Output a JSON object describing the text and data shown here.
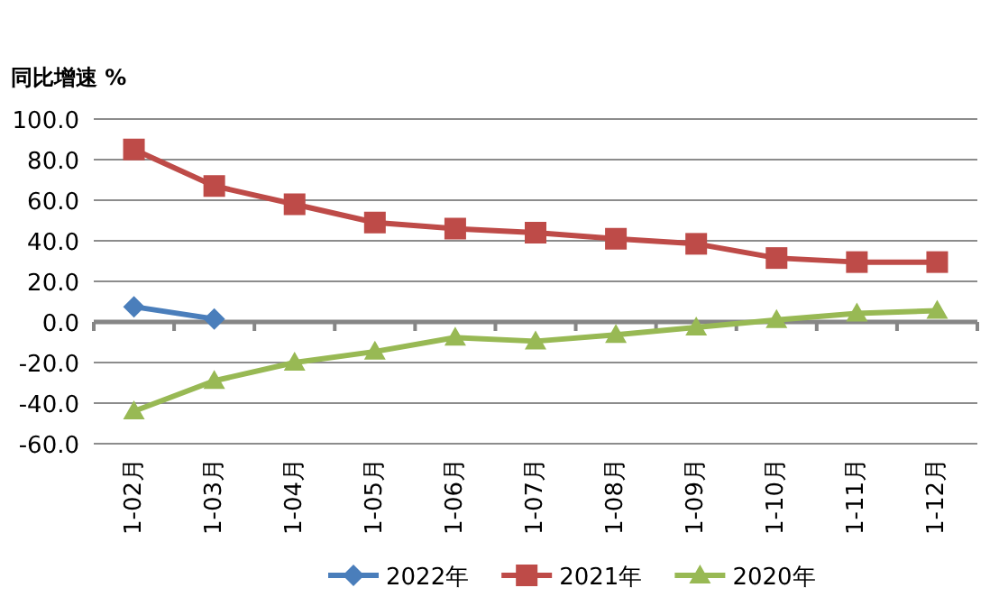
{
  "chart_data": {
    "type": "line",
    "ylabel": "同比增速 %",
    "categories": [
      "1-02月",
      "1-03月",
      "1-04月",
      "1-05月",
      "1-06月",
      "1-07月",
      "1-08月",
      "1-09月",
      "1-10月",
      "1-11月",
      "1-12月"
    ],
    "series": [
      {
        "name": "2022年",
        "color": "#4a7ebb",
        "marker": "diamond",
        "values": [
          7.5,
          1.5,
          null,
          null,
          null,
          null,
          null,
          null,
          null,
          null,
          null
        ]
      },
      {
        "name": "2021年",
        "color": "#be4b48",
        "marker": "square",
        "values": [
          85,
          67,
          58,
          49,
          46,
          44,
          41,
          38.5,
          31.5,
          29.5,
          29.5
        ]
      },
      {
        "name": "2020年",
        "color": "#98b954",
        "marker": "triangle",
        "values": [
          -44,
          -29,
          -20,
          -14.6,
          -7.7,
          -9.5,
          -6.3,
          -2.7,
          1,
          4.2,
          5.6
        ]
      }
    ],
    "ylim": [
      -60,
      100
    ],
    "yticks": [
      {
        "value": 100,
        "label": "100.0"
      },
      {
        "value": 80,
        "label": "80.0"
      },
      {
        "value": 60,
        "label": "60.0"
      },
      {
        "value": 40,
        "label": "40.0"
      },
      {
        "value": 20,
        "label": "20.0"
      },
      {
        "value": 0,
        "label": "0.0"
      },
      {
        "value": -20,
        "label": "-20.0"
      },
      {
        "value": -40,
        "label": "-40.0"
      },
      {
        "value": -60,
        "label": "-60.0"
      }
    ],
    "grid": "y",
    "legend": "bottom"
  }
}
